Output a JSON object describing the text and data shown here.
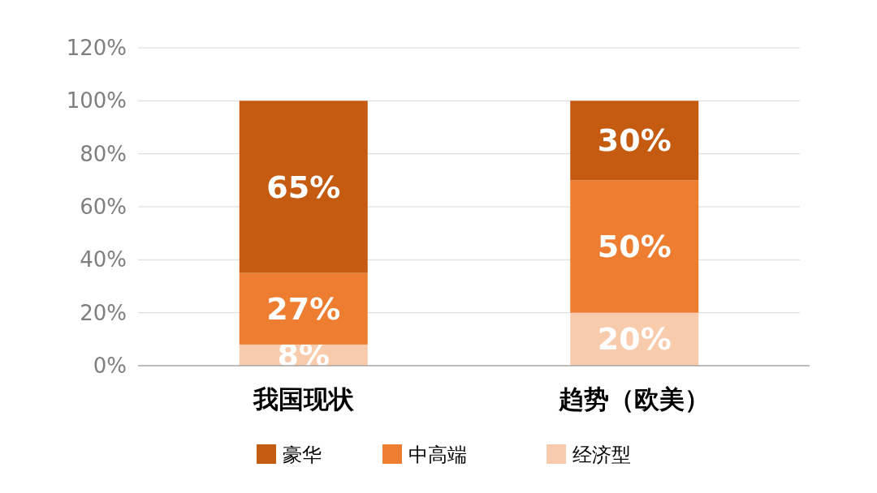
{
  "chart_data": {
    "type": "bar",
    "stacked": true,
    "categories": [
      "我国现状",
      "趋势（欧美）"
    ],
    "series": [
      {
        "name": "经济型",
        "color": "#f8cbad",
        "values": [
          8,
          20
        ],
        "value_labels": [
          "8%",
          "20%"
        ]
      },
      {
        "name": "中高端",
        "color": "#ed7d31",
        "values": [
          27,
          50
        ],
        "value_labels": [
          "27%",
          "50%"
        ]
      },
      {
        "name": "豪华",
        "color": "#c55a11",
        "values": [
          65,
          30
        ],
        "value_labels": [
          "65%",
          "30%"
        ]
      }
    ],
    "ylim": [
      0,
      120
    ],
    "yticks": [
      {
        "value": 0,
        "label": "0%"
      },
      {
        "value": 20,
        "label": "20%"
      },
      {
        "value": 40,
        "label": "40%"
      },
      {
        "value": 60,
        "label": "60%"
      },
      {
        "value": 80,
        "label": "80%"
      },
      {
        "value": 100,
        "label": "100%"
      },
      {
        "value": 120,
        "label": "120%"
      }
    ],
    "grid": "y",
    "legend": "bottom"
  }
}
